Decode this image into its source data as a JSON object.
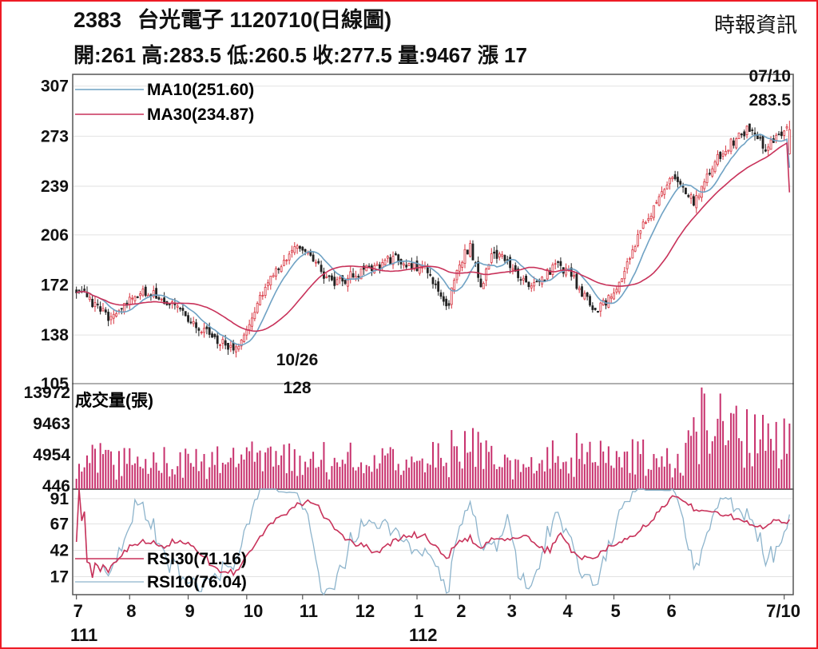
{
  "header": {
    "code": "2383",
    "name_date": "台光電子 1120710(日線圖)",
    "source": "時報資訊",
    "ohlc_line": "開:261 高:283.5 低:260.5 收:277.5 量:9467 漲 17"
  },
  "colors": {
    "frame": "#ee1c25",
    "candle_up": "#d8333f",
    "candle_down": "#222222",
    "ma10": "#6fa2c4",
    "ma30": "#c8325a",
    "volume": "#c8326e",
    "rsi30": "#c8325a",
    "rsi10": "#8db4cc"
  },
  "chart_data": [
    {
      "type": "candlestick",
      "name": "price",
      "yticks": [
        307,
        273,
        239,
        206,
        172,
        138,
        105
      ],
      "ylim": [
        105,
        315
      ],
      "legend": [
        {
          "label": "MA10(251.60)",
          "color": "#6fa2c4"
        },
        {
          "label": "MA30(234.87)",
          "color": "#c8325a"
        }
      ],
      "annotations": [
        {
          "date": "07/10",
          "value": "283.5",
          "position": "top-right"
        },
        {
          "date": "10/26",
          "value": "128",
          "position": "bottom-left"
        }
      ],
      "anchors": {
        "x": [
          0,
          12,
          25,
          36,
          48,
          60,
          72,
          84,
          96,
          108,
          120,
          132,
          136
        ],
        "close": [
          170,
          150,
          168,
          160,
          140,
          128,
          175,
          200,
          172,
          182,
          190,
          182,
          165
        ]
      },
      "extra_anchors": {
        "x": [
          140,
          143,
          148,
          152,
          156,
          160,
          165,
          170,
          176,
          181,
          186,
          191,
          195,
          199,
          203,
          206,
          209,
          212,
          215,
          218,
          221,
          224,
          226,
          229,
          232,
          235,
          238,
          241,
          244,
          247,
          250,
          253,
          256,
          259,
          262,
          265,
          268
        ],
        "close": [
          160,
          185,
          198,
          172,
          190,
          192,
          180,
          170,
          178,
          185,
          178,
          165,
          155,
          160,
          170,
          180,
          195,
          208,
          218,
          228,
          240,
          248,
          245,
          235,
          228,
          238,
          248,
          258,
          265,
          270,
          275,
          278,
          272,
          265,
          270,
          275,
          277.5
        ]
      },
      "last_bar": {
        "date": "07/10",
        "open": 261,
        "high": 283.5,
        "low": 260.5,
        "close": 277.5
      },
      "ma10_last": 251.6,
      "ma30_last": 234.87
    },
    {
      "type": "bar",
      "name": "volume",
      "title": "成交量(張)",
      "yticks": [
        13972,
        9463,
        4954,
        446
      ],
      "ylim": [
        0,
        15000
      ],
      "last_volume": 9467
    },
    {
      "type": "line",
      "name": "rsi",
      "yticks": [
        91,
        67,
        42,
        17
      ],
      "ylim": [
        0,
        100
      ],
      "series": [
        {
          "name": "RSI30(71.16)",
          "last": 71.16,
          "color": "#c8325a"
        },
        {
          "name": "RSI10(76.04)",
          "last": 76.04,
          "color": "#8db4cc"
        }
      ]
    }
  ],
  "x_axis": {
    "month_labels": [
      "7",
      "8",
      "9",
      "10",
      "11",
      "12",
      "1",
      "2",
      "3",
      "4",
      "5",
      "6",
      "7/10"
    ],
    "year_labels": [
      "111",
      "112"
    ]
  }
}
